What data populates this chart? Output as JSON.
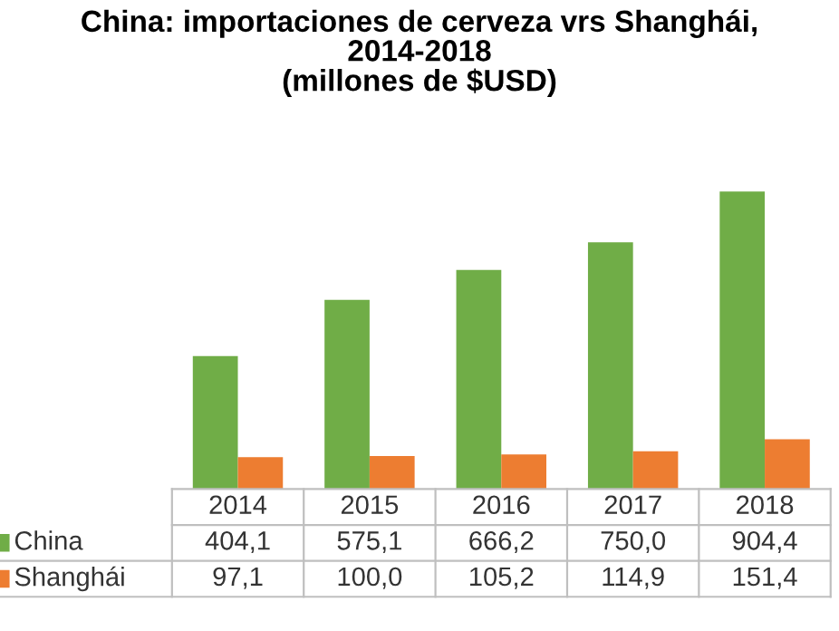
{
  "chart_data": {
    "type": "bar",
    "title": "China: importaciones de cerveza vrs Shanghái,\n2014-2018\n(millones de $USD)",
    "categories": [
      "2014",
      "2015",
      "2016",
      "2017",
      "2018"
    ],
    "series": [
      {
        "name": "China",
        "color": "#70ad47",
        "values": [
          404.1,
          575.1,
          666.2,
          750.0,
          904.4
        ],
        "value_labels": [
          "404,1",
          "575,1",
          "666,2",
          "750,0",
          "904,4"
        ]
      },
      {
        "name": "Shanghái",
        "color": "#ed7d31",
        "values": [
          97.1,
          100.0,
          105.2,
          114.9,
          151.4
        ],
        "value_labels": [
          "97,1",
          "100,0",
          "105,2",
          "114,9",
          "151,4"
        ]
      }
    ],
    "legend": "bottom"
  }
}
